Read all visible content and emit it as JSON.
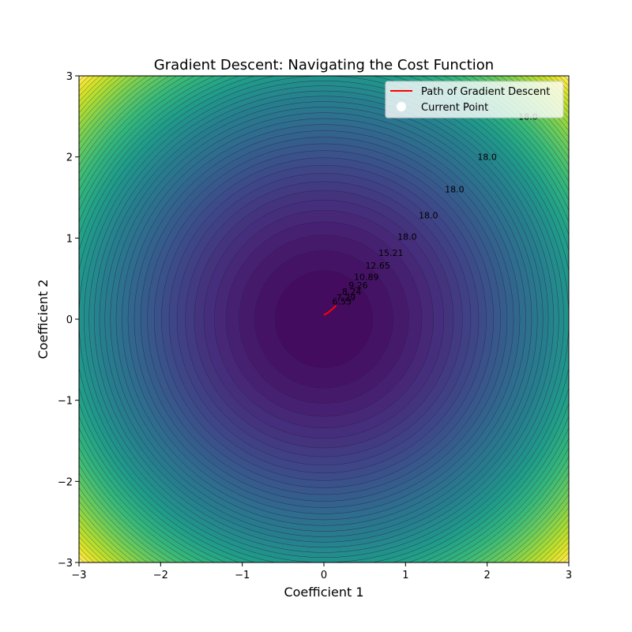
{
  "chart_data": {
    "type": "contour",
    "title": "Gradient Descent: Navigating the Cost Function",
    "xlabel": "Coefficient 1",
    "ylabel": "Coefficient 2",
    "xlim": [
      -3,
      3
    ],
    "ylim": [
      -3,
      3
    ],
    "x_ticks": [
      -3,
      -2,
      -1,
      0,
      1,
      2,
      3
    ],
    "y_ticks": [
      -3,
      -2,
      -1,
      0,
      1,
      2,
      3
    ],
    "x_tick_labels": [
      "−3",
      "−2",
      "−1",
      "0",
      "1",
      "2",
      "3"
    ],
    "y_tick_labels": [
      "−3",
      "−2",
      "−1",
      "0",
      "1",
      "2",
      "3"
    ],
    "cost_function": "x^2 + y^2",
    "colormap": "viridis",
    "contour_levels": 50,
    "legend": {
      "placement": "top-right",
      "entries": [
        {
          "label": "Path of Gradient Descent",
          "color": "#ff0000",
          "marker": "line"
        },
        {
          "label": "Current Point",
          "color": "#ffffff",
          "marker": "circle"
        }
      ]
    },
    "contour_labels": [
      {
        "x": 2.5,
        "y": 2.5,
        "text": "18.0"
      },
      {
        "x": 2.0,
        "y": 2.0,
        "text": "18.0"
      },
      {
        "x": 1.6,
        "y": 1.6,
        "text": "18.0"
      },
      {
        "x": 1.28,
        "y": 1.28,
        "text": "18.0"
      },
      {
        "x": 1.02,
        "y": 1.02,
        "text": "18.0"
      },
      {
        "x": 0.82,
        "y": 0.82,
        "text": "15.21"
      },
      {
        "x": 0.66,
        "y": 0.66,
        "text": "12.65"
      },
      {
        "x": 0.52,
        "y": 0.52,
        "text": "10.89"
      },
      {
        "x": 0.42,
        "y": 0.42,
        "text": "9.26"
      },
      {
        "x": 0.34,
        "y": 0.34,
        "text": "8.24"
      },
      {
        "x": 0.27,
        "y": 0.27,
        "text": "7.29"
      },
      {
        "x": 0.22,
        "y": 0.22,
        "text": "6.53"
      }
    ],
    "path": [
      {
        "x": 0.0,
        "y": 0.05
      },
      {
        "x": 0.05,
        "y": 0.08
      },
      {
        "x": 0.1,
        "y": 0.12
      },
      {
        "x": 0.15,
        "y": 0.17
      }
    ]
  }
}
